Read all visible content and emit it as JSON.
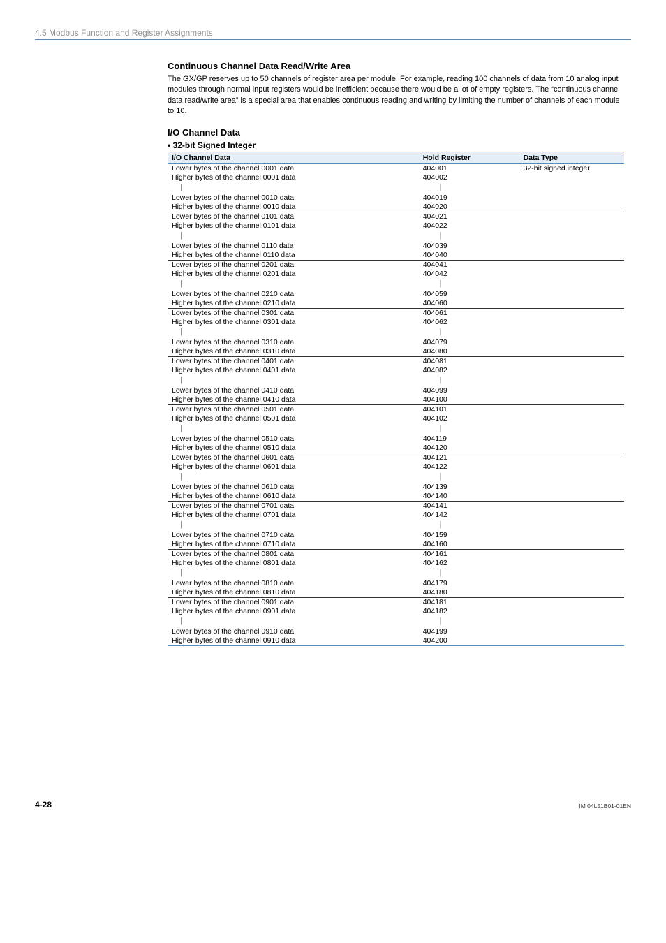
{
  "header": {
    "section": "4.5  Modbus Function and Register Assignments"
  },
  "titles": {
    "h3": "Continuous Channel Data Read/Write Area",
    "para": "The GX/GP reserves up to 50 channels of register area per module.\nFor example, reading 100 channels of data from 10 analog input modules through normal input registers would be inefficient because there would be a lot of empty registers.\nThe “continuous channel data read/write area” is a special area that enables continuous reading and writing by limiting the number of channels of each module to 10.",
    "h4": "I/O Channel Data",
    "bullet": "•  32-bit Signed Integer"
  },
  "table": {
    "head": {
      "c0": "I/O Channel Data",
      "c1": "Hold Register",
      "c2": "Data Type"
    },
    "data_type": "32-bit signed integer",
    "groups": [
      {
        "lo_ch": "0001",
        "lo_reg": "404001",
        "hi1_ch": "0001",
        "hi1_reg": "404002",
        "lo2_ch": "0010",
        "lo2_reg": "404019",
        "hi2_ch": "0010",
        "hi2_reg": "404020"
      },
      {
        "lo_ch": "0101",
        "lo_reg": "404021",
        "hi1_ch": "0101",
        "hi1_reg": "404022",
        "lo2_ch": "0110",
        "lo2_reg": "404039",
        "hi2_ch": "0110",
        "hi2_reg": "404040"
      },
      {
        "lo_ch": "0201",
        "lo_reg": "404041",
        "hi1_ch": "0201",
        "hi1_reg": "404042",
        "lo2_ch": "0210",
        "lo2_reg": "404059",
        "hi2_ch": "0210",
        "hi2_reg": "404060"
      },
      {
        "lo_ch": "0301",
        "lo_reg": "404061",
        "hi1_ch": "0301",
        "hi1_reg": "404062",
        "lo2_ch": "0310",
        "lo2_reg": "404079",
        "hi2_ch": "0310",
        "hi2_reg": "404080"
      },
      {
        "lo_ch": "0401",
        "lo_reg": "404081",
        "hi1_ch": "0401",
        "hi1_reg": "404082",
        "lo2_ch": "0410",
        "lo2_reg": "404099",
        "hi2_ch": "0410",
        "hi2_reg": "404100"
      },
      {
        "lo_ch": "0501",
        "lo_reg": "404101",
        "hi1_ch": "0501",
        "hi1_reg": "404102",
        "lo2_ch": "0510",
        "lo2_reg": "404119",
        "hi2_ch": "0510",
        "hi2_reg": "404120"
      },
      {
        "lo_ch": "0601",
        "lo_reg": "404121",
        "hi1_ch": "0601",
        "hi1_reg": "404122",
        "lo2_ch": "0610",
        "lo2_reg": "404139",
        "hi2_ch": "0610",
        "hi2_reg": "404140"
      },
      {
        "lo_ch": "0701",
        "lo_reg": "404141",
        "hi1_ch": "0701",
        "hi1_reg": "404142",
        "lo2_ch": "0710",
        "lo2_reg": "404159",
        "hi2_ch": "0710",
        "hi2_reg": "404160"
      },
      {
        "lo_ch": "0801",
        "lo_reg": "404161",
        "hi1_ch": "0801",
        "hi1_reg": "404162",
        "lo2_ch": "0810",
        "lo2_reg": "404179",
        "hi2_ch": "0810",
        "hi2_reg": "404180"
      },
      {
        "lo_ch": "0901",
        "lo_reg": "404181",
        "hi1_ch": "0901",
        "hi1_reg": "404182",
        "lo2_ch": "0910",
        "lo2_reg": "404199",
        "hi2_ch": "0910",
        "hi2_reg": "404200"
      }
    ],
    "labels": {
      "lower_pre": "Lower bytes of the channel ",
      "higher_pre": "Higher bytes of the channel ",
      "suffix": " data",
      "pipe": "｜"
    }
  },
  "footer": {
    "page": "4-28",
    "doc": "IM 04L51B01-01EN"
  }
}
